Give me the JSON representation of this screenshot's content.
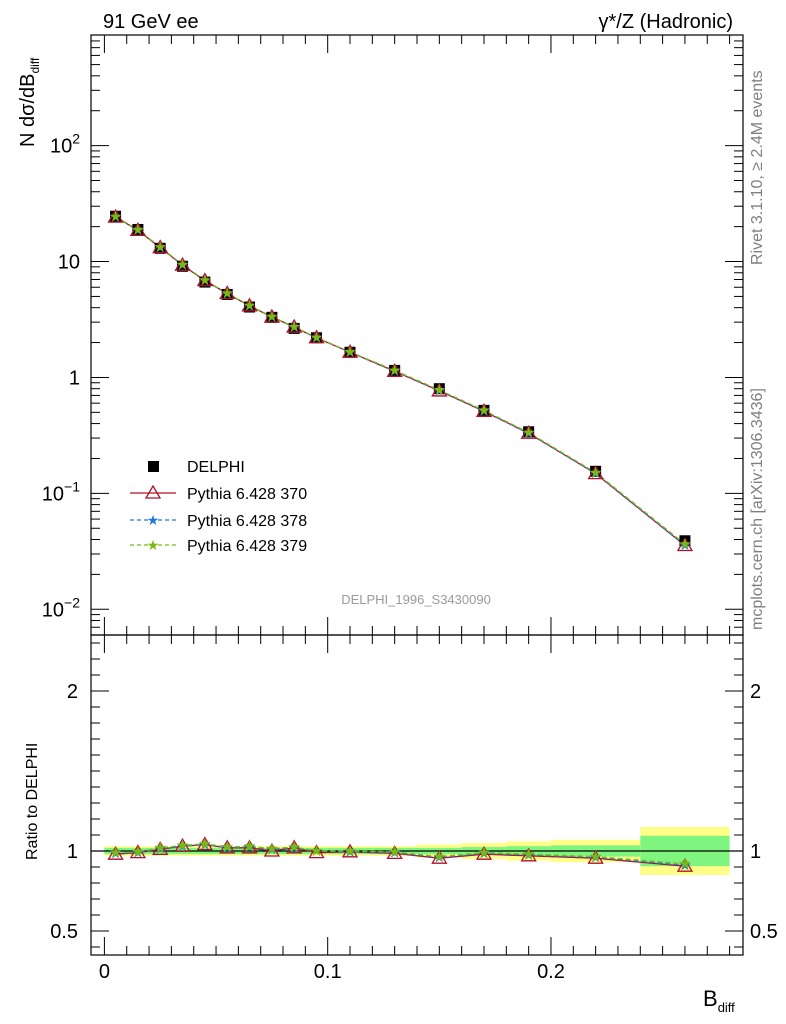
{
  "header": {
    "left_label": "91 GeV ee",
    "right_label": "γ*/Z (Hadronic)"
  },
  "side_text": {
    "rivet": "Rivet 3.1.10, ≥ 2.4M events",
    "mcplots": "mcplots.cern.ch [arXiv:1306.3436]"
  },
  "analysis_label": "DELPHI_1996_S3430090",
  "colors": {
    "data": "#000000",
    "pythia370": "#b0102a",
    "pythia378": "#2277dd",
    "pythia379": "#77bb11",
    "band_inner": "#7ff57f",
    "band_outer": "#ffff88"
  },
  "chart_data": [
    {
      "type": "scatter",
      "panel": "main",
      "ylabel": "N dσ/dB",
      "ylabel_sub": "diff",
      "yscale": "log",
      "xlim": [
        -0.006,
        0.286
      ],
      "ylim": [
        0.006,
        900
      ],
      "y_ticks": [
        {
          "value": 0.01,
          "base": "10",
          "exp": "−2"
        },
        {
          "value": 0.1,
          "base": "10",
          "exp": "−1"
        },
        {
          "value": 1,
          "base": "1",
          "exp": ""
        },
        {
          "value": 10,
          "base": "10",
          "exp": ""
        },
        {
          "value": 100,
          "base": "10",
          "exp": "2"
        }
      ],
      "legend_position": "lower-left",
      "x": [
        0.005,
        0.015,
        0.025,
        0.035,
        0.045,
        0.055,
        0.065,
        0.075,
        0.085,
        0.095,
        0.11,
        0.13,
        0.15,
        0.17,
        0.19,
        0.22,
        0.26
      ],
      "series": [
        {
          "name": "DELPHI",
          "key": "data",
          "marker": "square",
          "values": [
            24.6,
            18.9,
            13.0,
            9.1,
            6.65,
            5.2,
            4.05,
            3.3,
            2.65,
            2.2,
            1.65,
            1.15,
            0.8,
            0.52,
            0.34,
            0.155,
            0.039
          ]
        },
        {
          "name": "Pythia 6.428 370",
          "key": "pythia370",
          "marker": "triangle",
          "dash": "solid",
          "values": [
            24.2,
            18.6,
            13.2,
            9.3,
            6.85,
            5.3,
            4.15,
            3.32,
            2.72,
            2.2,
            1.65,
            1.13,
            0.765,
            0.51,
            0.33,
            0.148,
            0.0355
          ]
        },
        {
          "name": "Pythia 6.428 378",
          "key": "pythia378",
          "marker": "star",
          "dash": "dashed",
          "values": [
            24.3,
            18.7,
            13.25,
            9.35,
            6.88,
            5.3,
            4.15,
            3.33,
            2.72,
            2.2,
            1.65,
            1.14,
            0.77,
            0.515,
            0.33,
            0.149,
            0.0357
          ]
        },
        {
          "name": "Pythia 6.428 379",
          "key": "pythia379",
          "marker": "star",
          "dash": "dashed",
          "values": [
            24.4,
            18.8,
            13.3,
            9.4,
            6.9,
            5.32,
            4.17,
            3.34,
            2.73,
            2.21,
            1.66,
            1.15,
            0.78,
            0.52,
            0.335,
            0.151,
            0.0365
          ]
        }
      ]
    },
    {
      "type": "line",
      "panel": "ratio",
      "ylabel": "Ratio to DELPHI",
      "xlabel": "B",
      "xlabel_sub": "diff",
      "ylim": [
        0.35,
        2.35
      ],
      "x_ticks": [
        {
          "value": 0,
          "label": "0"
        },
        {
          "value": 0.1,
          "label": "0.1"
        },
        {
          "value": 0.2,
          "label": "0.2"
        }
      ],
      "y_ticks": [
        {
          "value": 0.5,
          "label": "0.5"
        },
        {
          "value": 1,
          "label": "1"
        },
        {
          "value": 2,
          "label": "2"
        }
      ],
      "bins": [
        [
          0.0,
          0.01
        ],
        [
          0.01,
          0.02
        ],
        [
          0.02,
          0.03
        ],
        [
          0.03,
          0.04
        ],
        [
          0.04,
          0.05
        ],
        [
          0.05,
          0.06
        ],
        [
          0.06,
          0.07
        ],
        [
          0.07,
          0.08
        ],
        [
          0.08,
          0.09
        ],
        [
          0.09,
          0.1
        ],
        [
          0.1,
          0.12
        ],
        [
          0.12,
          0.14
        ],
        [
          0.14,
          0.16
        ],
        [
          0.16,
          0.18
        ],
        [
          0.18,
          0.2
        ],
        [
          0.2,
          0.24
        ],
        [
          0.24,
          0.28
        ]
      ],
      "band_inner": [
        0.02,
        0.02,
        0.02,
        0.02,
        0.02,
        0.02,
        0.02,
        0.02,
        0.02,
        0.02,
        0.02,
        0.02,
        0.02,
        0.025,
        0.03,
        0.035,
        0.095
      ],
      "band_outer": [
        0.03,
        0.03,
        0.03,
        0.03,
        0.03,
        0.03,
        0.03,
        0.03,
        0.03,
        0.03,
        0.03,
        0.03,
        0.04,
        0.05,
        0.06,
        0.07,
        0.15
      ],
      "series": [
        {
          "name": "Pythia 6.428 370",
          "key": "pythia370",
          "values": [
            0.98,
            0.99,
            1.01,
            1.03,
            1.04,
            1.02,
            1.02,
            1.0,
            1.02,
            0.99,
            0.995,
            0.985,
            0.955,
            0.98,
            0.97,
            0.955,
            0.905
          ]
        },
        {
          "name": "Pythia 6.428 378",
          "key": "pythia378",
          "values": [
            0.985,
            0.99,
            1.015,
            1.03,
            1.04,
            1.02,
            1.025,
            1.01,
            1.02,
            1.0,
            0.995,
            0.99,
            0.96,
            0.985,
            0.975,
            0.96,
            0.91
          ]
        },
        {
          "name": "Pythia 6.428 379",
          "key": "pythia379",
          "values": [
            0.99,
            0.995,
            1.02,
            1.035,
            1.045,
            1.025,
            1.03,
            1.015,
            1.025,
            1.0,
            1.0,
            0.995,
            0.965,
            0.99,
            0.98,
            0.965,
            0.92
          ]
        }
      ]
    }
  ]
}
